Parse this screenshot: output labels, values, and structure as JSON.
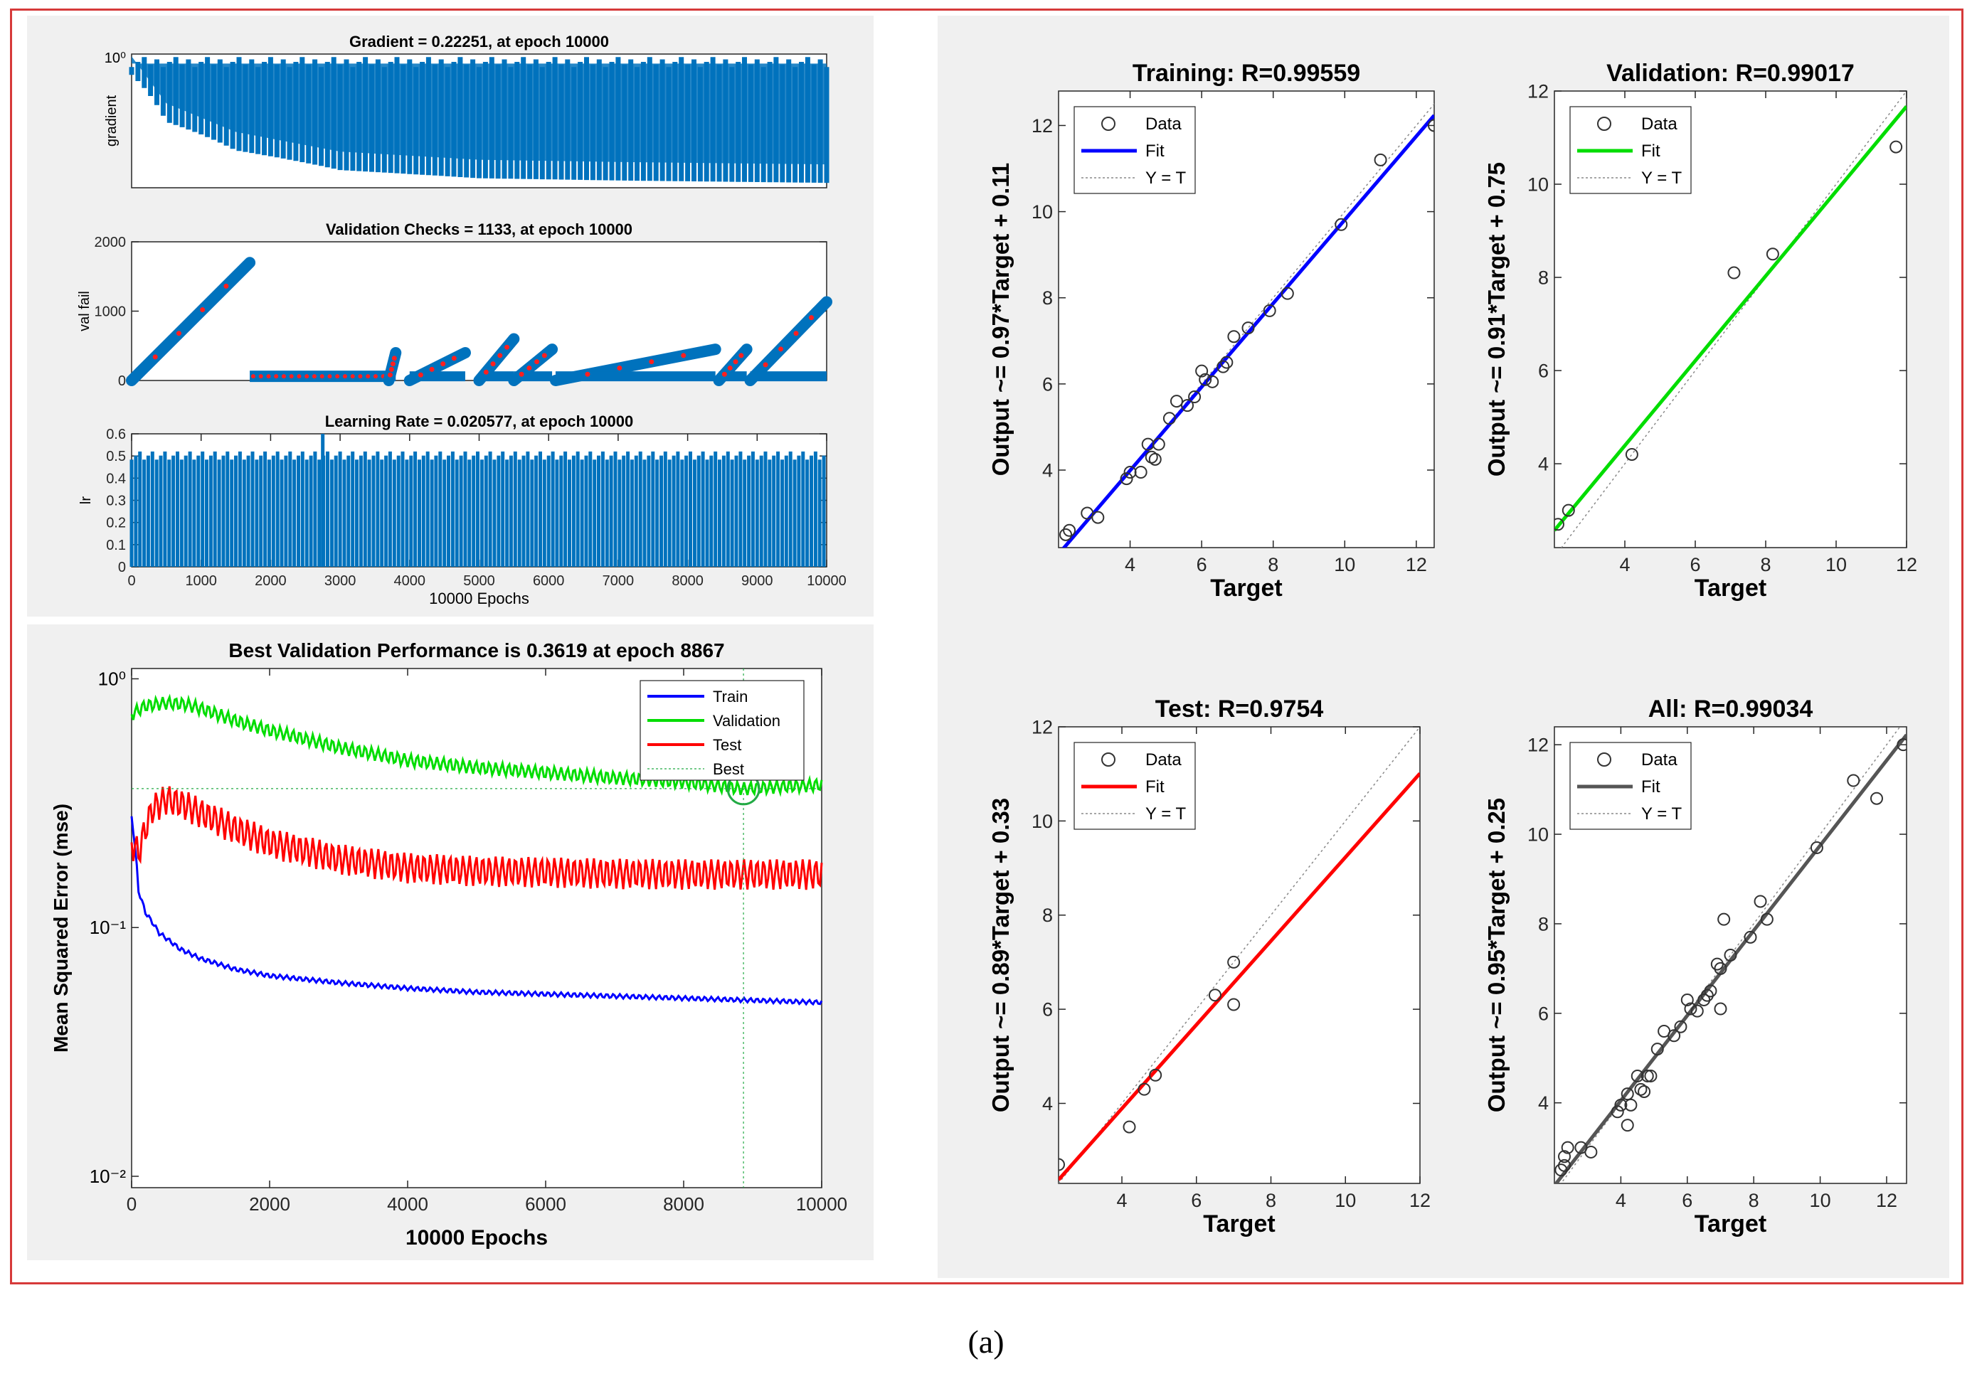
{
  "caption": "(a)",
  "colors": {
    "frame": "#d63a3a",
    "matlab_blue": "#0072BD",
    "train": "#0000ff",
    "validation": "#00dd00",
    "test": "#ff0000",
    "all": "#555555",
    "panel": "#f0f0f0",
    "best": "#22aa44"
  },
  "chart_data": [
    {
      "id": "gradient",
      "type": "line",
      "title": "Gradient = 0.22251, at epoch 10000",
      "ylabel": "gradient",
      "xlim": [
        0,
        10000
      ],
      "yscale": "log",
      "ytick_labels": [
        "10⁰"
      ],
      "series": [
        {
          "color": "#0072BD",
          "envelope_top": [
            [
              0,
              1.0
            ],
            [
              10000,
              1.0
            ]
          ],
          "envelope_bottom": [
            [
              0,
              0.75
            ],
            [
              500,
              0.35
            ],
            [
              1500,
              0.22
            ],
            [
              3000,
              0.16
            ],
            [
              5000,
              0.14
            ],
            [
              7000,
              0.135
            ],
            [
              10000,
              0.13
            ]
          ],
          "final_value": 0.22251
        }
      ]
    },
    {
      "id": "val_fail",
      "type": "scatter",
      "title": "Validation Checks = 1133, at epoch 10000",
      "ylabel": "val fail",
      "xlim": [
        0,
        10000
      ],
      "ylim": [
        0,
        2000
      ],
      "yticks": [
        0,
        1000,
        2000
      ],
      "ramps": [
        [
          0,
          1700
        ],
        [
          1700,
          1700
        ],
        [
          3700,
          3800
        ],
        [
          4000,
          4800
        ],
        [
          5000,
          5500
        ],
        [
          5500,
          6050
        ],
        [
          6100,
          8400
        ],
        [
          8450,
          8850
        ],
        [
          8900,
          10000
        ]
      ],
      "ramp_peaks": [
        1700,
        0,
        400,
        400,
        600,
        450,
        450,
        450,
        1133
      ]
    },
    {
      "id": "lr",
      "type": "line",
      "title": "Learning Rate = 0.020577, at epoch 10000",
      "ylabel": "lr",
      "xlim": [
        0,
        10000
      ],
      "ylim": [
        0,
        0.6
      ],
      "yticks": [
        0,
        0.1,
        0.2,
        0.3,
        0.4,
        0.5,
        0.6
      ],
      "xticks": [
        0,
        1000,
        2000,
        3000,
        4000,
        5000,
        6000,
        7000,
        8000,
        9000,
        10000
      ],
      "xlabel": "10000 Epochs",
      "typical_peak": 0.52,
      "spike": [
        [
          2750,
          0.6
        ]
      ]
    },
    {
      "id": "performance",
      "type": "line",
      "title": "Best Validation Performance is 0.3619 at epoch 8867",
      "xlabel": "10000 Epochs",
      "ylabel": "Mean Squared Error  (mse)",
      "xlim": [
        0,
        10000
      ],
      "ylim": [
        0.009,
        1.1
      ],
      "yscale": "log",
      "xticks": [
        0,
        2000,
        4000,
        6000,
        8000,
        10000
      ],
      "ytick_labels": [
        "10⁰",
        "10⁻¹",
        "10⁻²"
      ],
      "legend": [
        "Train",
        "Validation",
        "Test",
        "Best"
      ],
      "legend_position": "top-right",
      "series": [
        {
          "name": "Train",
          "color": "#0000ff",
          "x": [
            0,
            100,
            200,
            400,
            700,
            1000,
            1500,
            2000,
            3000,
            4000,
            5000,
            6000,
            7000,
            8000,
            9000,
            10000
          ],
          "y": [
            0.28,
            0.14,
            0.115,
            0.095,
            0.082,
            0.075,
            0.068,
            0.064,
            0.06,
            0.057,
            0.055,
            0.054,
            0.053,
            0.052,
            0.051,
            0.05
          ]
        },
        {
          "name": "Validation",
          "color": "#00dd00",
          "x": [
            0,
            200,
            500,
            800,
            1000,
            1500,
            2000,
            3000,
            4000,
            5000,
            6000,
            7000,
            8000,
            8867,
            9500,
            10000
          ],
          "y": [
            0.72,
            0.78,
            0.8,
            0.79,
            0.76,
            0.68,
            0.62,
            0.53,
            0.47,
            0.44,
            0.42,
            0.4,
            0.385,
            0.3619,
            0.37,
            0.375
          ]
        },
        {
          "name": "Test",
          "color": "#ff0000",
          "x": [
            0,
            100,
            300,
            500,
            800,
            1000,
            1500,
            2000,
            3000,
            4000,
            5000,
            6000,
            7000,
            8000,
            9000,
            10000
          ],
          "y": [
            0.22,
            0.2,
            0.3,
            0.33,
            0.31,
            0.29,
            0.25,
            0.22,
            0.19,
            0.175,
            0.17,
            0.168,
            0.166,
            0.165,
            0.165,
            0.165
          ]
        }
      ],
      "best": {
        "epoch": 8867,
        "value": 0.3619
      }
    },
    {
      "id": "training",
      "type": "scatter",
      "title": "Training: R=0.99559",
      "xlabel": "Target",
      "ylabel": "Output ~= 0.97*Target + 0.11",
      "xlim": [
        2,
        12.5
      ],
      "ylim": [
        2.2,
        12.8
      ],
      "xticks": [
        4,
        6,
        8,
        10,
        12
      ],
      "yticks": [
        4,
        6,
        8,
        10,
        12
      ],
      "fit": {
        "slope": 0.97,
        "intercept": 0.11,
        "color": "#0000ff"
      },
      "legend": [
        "Data",
        "Fit",
        "Y = T"
      ],
      "points": [
        [
          2.2,
          2.5
        ],
        [
          2.3,
          2.6
        ],
        [
          2.8,
          3.0
        ],
        [
          3.1,
          2.9
        ],
        [
          3.9,
          3.8
        ],
        [
          4.0,
          3.95
        ],
        [
          4.3,
          3.95
        ],
        [
          4.5,
          4.6
        ],
        [
          4.6,
          4.3
        ],
        [
          4.7,
          4.25
        ],
        [
          4.8,
          4.6
        ],
        [
          5.1,
          5.2
        ],
        [
          5.3,
          5.6
        ],
        [
          5.6,
          5.5
        ],
        [
          5.8,
          5.7
        ],
        [
          6.0,
          6.3
        ],
        [
          6.1,
          6.1
        ],
        [
          6.3,
          6.05
        ],
        [
          6.6,
          6.4
        ],
        [
          6.7,
          6.5
        ],
        [
          6.9,
          7.1
        ],
        [
          7.3,
          7.3
        ],
        [
          7.9,
          7.7
        ],
        [
          8.4,
          8.1
        ],
        [
          9.9,
          9.7
        ],
        [
          11.0,
          11.2
        ],
        [
          12.5,
          12.0
        ]
      ]
    },
    {
      "id": "validation",
      "type": "scatter",
      "title": "Validation: R=0.99017",
      "xlabel": "Target",
      "ylabel": "Output ~= 0.91*Target + 0.75",
      "xlim": [
        2,
        12
      ],
      "ylim": [
        2.2,
        12
      ],
      "xticks": [
        4,
        6,
        8,
        10,
        12
      ],
      "yticks": [
        4,
        6,
        8,
        10,
        12
      ],
      "fit": {
        "slope": 0.91,
        "intercept": 0.75,
        "color": "#00dd00"
      },
      "legend": [
        "Data",
        "Fit",
        "Y = T"
      ],
      "points": [
        [
          2.1,
          2.7
        ],
        [
          2.4,
          3.0
        ],
        [
          4.2,
          4.2
        ],
        [
          7.1,
          8.1
        ],
        [
          8.2,
          8.5
        ],
        [
          11.7,
          10.8
        ]
      ]
    },
    {
      "id": "test",
      "type": "scatter",
      "title": "Test: R=0.9754",
      "xlabel": "Target",
      "ylabel": "Output ~= 0.89*Target + 0.33",
      "xlim": [
        2.3,
        12
      ],
      "ylim": [
        2.3,
        12
      ],
      "xticks": [
        4,
        6,
        8,
        10,
        12
      ],
      "yticks": [
        4,
        6,
        8,
        10,
        12
      ],
      "fit": {
        "slope": 0.89,
        "intercept": 0.33,
        "color": "#ff0000"
      },
      "legend": [
        "Data",
        "Fit",
        "Y = T"
      ],
      "points": [
        [
          2.3,
          2.7
        ],
        [
          4.2,
          3.5
        ],
        [
          4.6,
          4.3
        ],
        [
          4.9,
          4.6
        ],
        [
          6.5,
          6.3
        ],
        [
          7.0,
          6.1
        ],
        [
          7.0,
          7.0
        ]
      ]
    },
    {
      "id": "all",
      "type": "scatter",
      "title": "All: R=0.99034",
      "xlabel": "Target",
      "ylabel": "Output ~= 0.95*Target + 0.25",
      "xlim": [
        2,
        12.6
      ],
      "ylim": [
        2.2,
        12.4
      ],
      "xticks": [
        4,
        6,
        8,
        10,
        12
      ],
      "yticks": [
        4,
        6,
        8,
        10,
        12
      ],
      "fit": {
        "slope": 0.95,
        "intercept": 0.25,
        "color": "#555555"
      },
      "legend": [
        "Data",
        "Fit",
        "Y = T"
      ],
      "points": [
        [
          2.2,
          2.5
        ],
        [
          2.3,
          2.6
        ],
        [
          2.4,
          3.0
        ],
        [
          2.3,
          2.8
        ],
        [
          2.8,
          3.0
        ],
        [
          3.1,
          2.9
        ],
        [
          3.9,
          3.8
        ],
        [
          4.0,
          3.95
        ],
        [
          4.2,
          4.2
        ],
        [
          4.2,
          3.5
        ],
        [
          4.3,
          3.95
        ],
        [
          4.5,
          4.6
        ],
        [
          4.6,
          4.3
        ],
        [
          4.7,
          4.25
        ],
        [
          4.8,
          4.6
        ],
        [
          4.9,
          4.6
        ],
        [
          5.1,
          5.2
        ],
        [
          5.3,
          5.6
        ],
        [
          5.6,
          5.5
        ],
        [
          5.8,
          5.7
        ],
        [
          6.0,
          6.3
        ],
        [
          6.1,
          6.1
        ],
        [
          6.3,
          6.05
        ],
        [
          6.5,
          6.3
        ],
        [
          6.6,
          6.4
        ],
        [
          6.7,
          6.5
        ],
        [
          6.9,
          7.1
        ],
        [
          7.0,
          6.1
        ],
        [
          7.0,
          7.0
        ],
        [
          7.1,
          8.1
        ],
        [
          7.3,
          7.3
        ],
        [
          7.9,
          7.7
        ],
        [
          8.2,
          8.5
        ],
        [
          8.4,
          8.1
        ],
        [
          9.9,
          9.7
        ],
        [
          11.0,
          11.2
        ],
        [
          11.7,
          10.8
        ],
        [
          12.5,
          12.0
        ]
      ]
    }
  ]
}
